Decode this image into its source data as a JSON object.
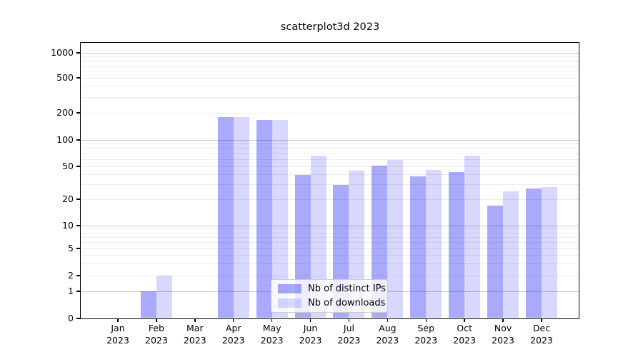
{
  "title": "scatterplot3d 2023",
  "chart_data": {
    "type": "bar",
    "title": "scatterplot3d 2023",
    "xlabel": "",
    "ylabel": "",
    "categories": [
      "Jan",
      "Feb",
      "Mar",
      "Apr",
      "May",
      "Jun",
      "Jul",
      "Aug",
      "Sep",
      "Oct",
      "Nov",
      "Dec"
    ],
    "category_year": "2023",
    "series": [
      {
        "name": "Nb of distinct IPs",
        "color": "rgba(10,10,250,0.345)",
        "solid_color_hex": "#a9a9fb",
        "values": [
          0,
          1,
          0,
          180,
          168,
          39,
          30,
          51,
          38,
          43,
          17,
          27
        ]
      },
      {
        "name": "Nb of downloads",
        "color": "rgba(10,10,250,0.16)",
        "solid_color_hex": "#d8d8fb",
        "values": [
          0,
          2,
          0,
          180,
          168,
          66,
          44,
          59,
          45,
          66,
          25,
          28
        ]
      }
    ],
    "y_ticks": [
      0,
      1,
      2,
      5,
      10,
      20,
      50,
      100,
      200,
      500,
      1000
    ],
    "y_scale": "symlog",
    "ylim": [
      0,
      1300
    ],
    "grid": true,
    "gridline_major_color": "#c9c9c9",
    "gridline_minor_color": "#ebebeb",
    "legend_position": "lower center",
    "legend_entries": [
      "Nb of distinct IPs",
      "Nb of downloads"
    ]
  }
}
